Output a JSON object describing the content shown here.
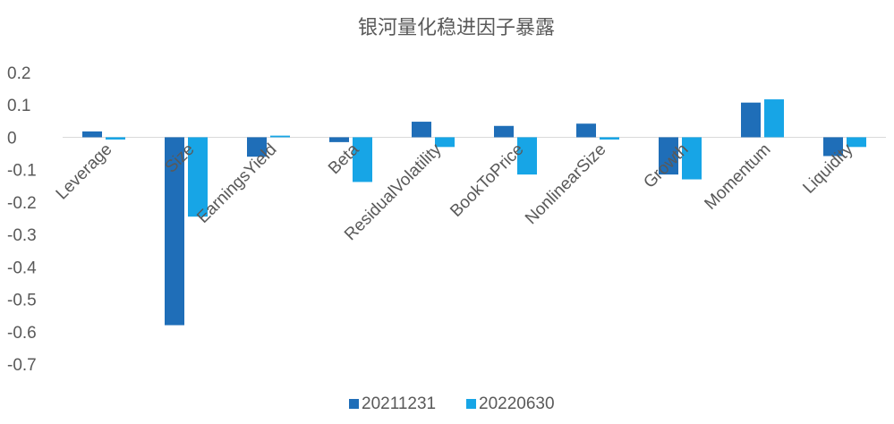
{
  "chart_data": {
    "type": "bar",
    "title": "银河量化稳进因子暴露",
    "xlabel": "",
    "ylabel": "",
    "ylim": [
      -0.7,
      0.2
    ],
    "yticks": [
      0.2,
      0.1,
      0,
      -0.1,
      -0.2,
      -0.3,
      -0.4,
      -0.5,
      -0.6,
      -0.7
    ],
    "ytick_labels": [
      "0.2",
      "0.1",
      "0",
      "-0.1",
      "-0.2",
      "-0.3",
      "-0.4",
      "-0.5",
      "-0.6",
      "-0.7"
    ],
    "grid": false,
    "legend_position": "bottom",
    "categories": [
      "Leverage",
      "Size",
      "EarningsYield",
      "Beta",
      "ResidualVolatility",
      "BookToPrice",
      "NonlinearSize",
      "Growth",
      "Momentum",
      "Liquidity"
    ],
    "series": [
      {
        "name": "20211231",
        "color": "#1F6EB8",
        "values": [
          0.018,
          -0.58,
          -0.06,
          -0.015,
          0.048,
          0.035,
          0.042,
          -0.115,
          0.107,
          -0.058
        ]
      },
      {
        "name": "20220630",
        "color": "#17A5E6",
        "values": [
          -0.007,
          -0.245,
          0.005,
          -0.138,
          -0.03,
          -0.115,
          -0.007,
          -0.13,
          0.117,
          -0.03
        ]
      }
    ]
  }
}
